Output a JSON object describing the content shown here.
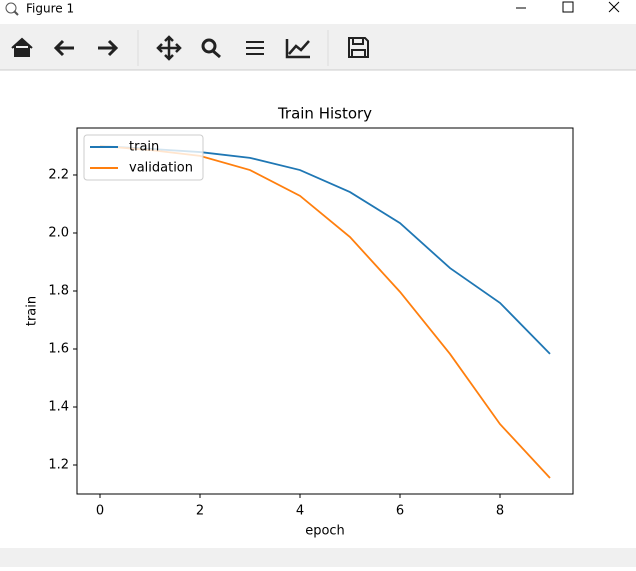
{
  "window": {
    "title": "Figure 1"
  },
  "chart_data": {
    "type": "line",
    "title": "Train History",
    "xlabel": "epoch",
    "ylabel": "train",
    "x": [
      0,
      1,
      2,
      3,
      4,
      5,
      6,
      7,
      8,
      9
    ],
    "series": [
      {
        "name": "train",
        "color": "#1f77b4",
        "values": [
          2.3,
          2.29,
          2.279,
          2.259,
          2.217,
          2.141,
          2.034,
          1.879,
          1.759,
          1.583
        ]
      },
      {
        "name": "validation",
        "color": "#ff7f0e",
        "values": [
          2.3,
          2.286,
          2.266,
          2.217,
          2.128,
          1.986,
          1.797,
          1.583,
          1.341,
          1.155
        ]
      }
    ],
    "xlim": [
      -0.46,
      9.46
    ],
    "ylim": [
      1.1,
      2.362
    ],
    "xticks": [
      0,
      2,
      4,
      6,
      8
    ],
    "yticks": [
      1.2,
      1.4,
      1.6,
      1.8,
      {
        "value": 2,
        "label": "2.0"
      },
      2.2
    ],
    "legend": "upper left",
    "grid": false
  }
}
